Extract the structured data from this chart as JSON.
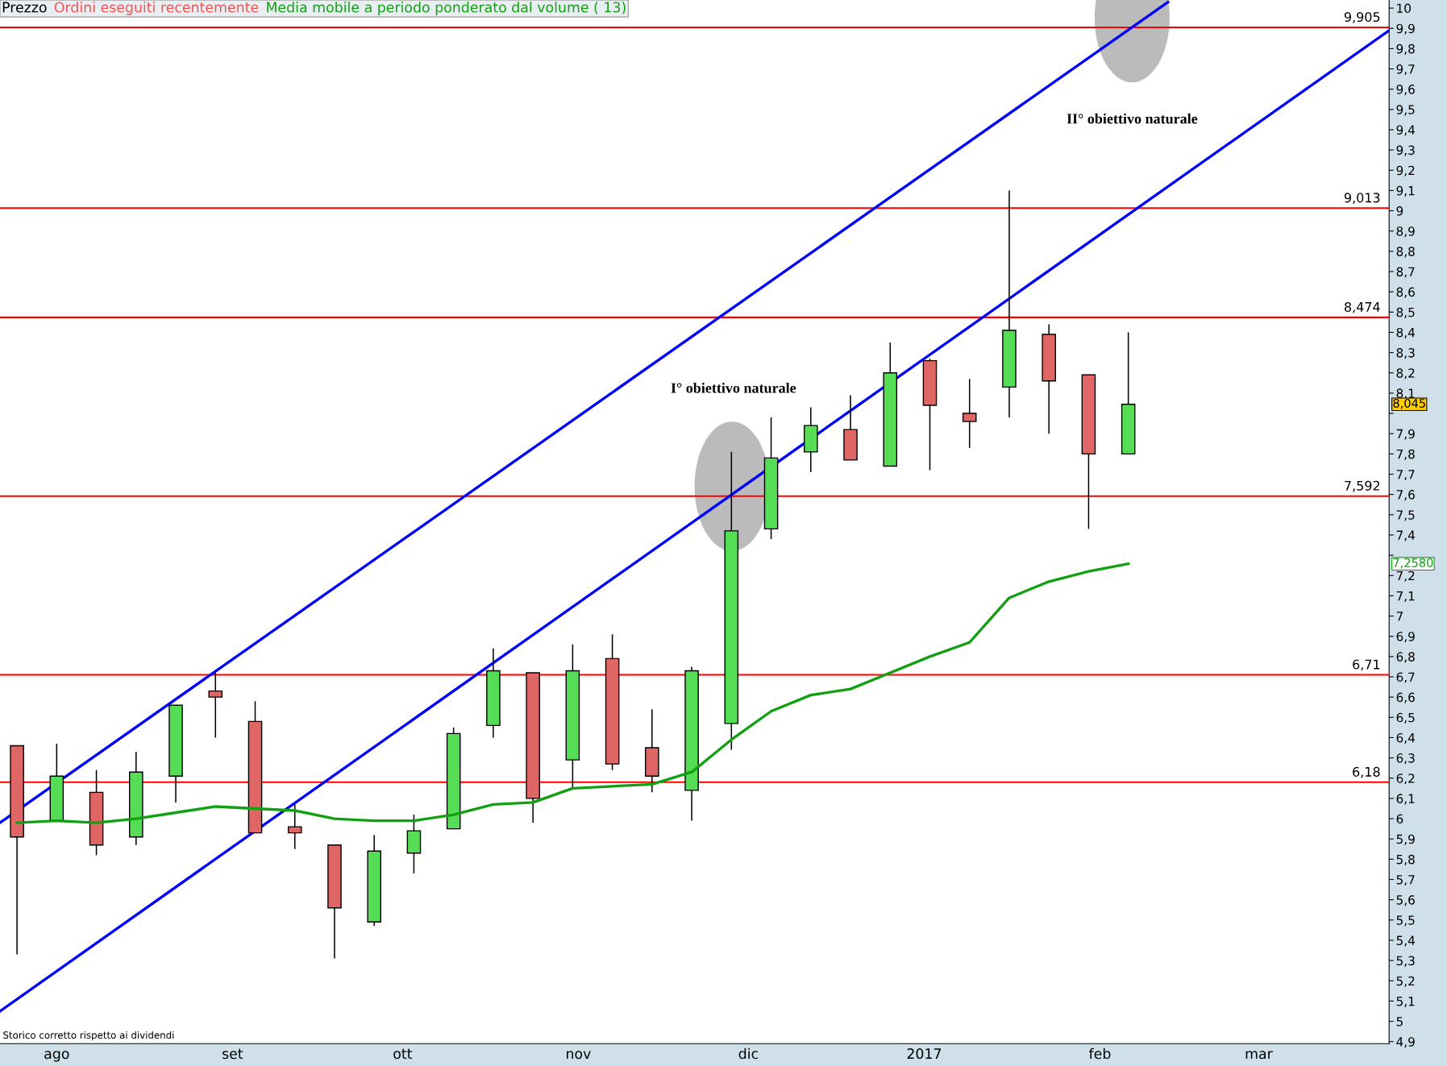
{
  "chart_data": {
    "type": "candlestick",
    "x": [
      "2016-07-25",
      "2016-08-01",
      "2016-08-08",
      "2016-08-15",
      "2016-08-22",
      "2016-08-29",
      "2016-09-05",
      "2016-09-12",
      "2016-09-19",
      "2016-09-26",
      "2016-10-03",
      "2016-10-10",
      "2016-10-17",
      "2016-10-24",
      "2016-10-31",
      "2016-11-07",
      "2016-11-14",
      "2016-11-21",
      "2016-11-28",
      "2016-12-05",
      "2016-12-12",
      "2016-12-19",
      "2016-12-26",
      "2017-01-02",
      "2017-01-09",
      "2017-01-16",
      "2017-01-23",
      "2017-01-30",
      "2017-02-06"
    ],
    "series": [
      {
        "name": "Prezzo",
        "type": "candlestick",
        "color": "#000000",
        "ohlc": [
          [
            6.36,
            6.36,
            5.33,
            5.91
          ],
          [
            5.99,
            6.37,
            5.99,
            6.21
          ],
          [
            6.13,
            6.24,
            5.82,
            5.87
          ],
          [
            5.91,
            6.33,
            5.87,
            6.23
          ],
          [
            6.21,
            6.56,
            6.08,
            6.56
          ],
          [
            6.63,
            6.72,
            6.4,
            6.6
          ],
          [
            6.48,
            6.58,
            5.93,
            5.93
          ],
          [
            5.96,
            6.07,
            5.85,
            5.93
          ],
          [
            5.87,
            5.87,
            5.31,
            5.56
          ],
          [
            5.49,
            5.92,
            5.47,
            5.84
          ],
          [
            5.83,
            6.02,
            5.73,
            5.94
          ],
          [
            5.95,
            6.45,
            5.95,
            6.42
          ],
          [
            6.46,
            6.84,
            6.4,
            6.73
          ],
          [
            6.72,
            6.72,
            5.98,
            6.1
          ],
          [
            6.29,
            6.86,
            6.15,
            6.73
          ],
          [
            6.79,
            6.91,
            6.24,
            6.27
          ],
          [
            6.35,
            6.54,
            6.13,
            6.21
          ],
          [
            6.14,
            6.75,
            5.99,
            6.73
          ],
          [
            6.47,
            7.81,
            6.34,
            7.42
          ],
          [
            7.43,
            7.98,
            7.38,
            7.78
          ],
          [
            7.81,
            8.03,
            7.71,
            7.94
          ],
          [
            7.92,
            8.09,
            7.77,
            7.77
          ],
          [
            7.74,
            8.35,
            7.74,
            8.2
          ],
          [
            8.26,
            8.27,
            7.72,
            8.04
          ],
          [
            8.0,
            8.17,
            7.83,
            7.96
          ],
          [
            8.13,
            9.1,
            7.98,
            8.41
          ],
          [
            8.39,
            8.44,
            7.9,
            8.16
          ],
          [
            8.19,
            8.19,
            7.43,
            7.8
          ],
          [
            7.8,
            8.4,
            7.8,
            8.045
          ]
        ],
        "colors": [
          "#e06666",
          "#55dd55",
          "#e06666",
          "#55dd55",
          "#55dd55",
          "#e06666",
          "#e06666",
          "#e06666",
          "#e06666",
          "#55dd55",
          "#55dd55",
          "#55dd55",
          "#55dd55",
          "#e06666",
          "#55dd55",
          "#e06666",
          "#e06666",
          "#55dd55",
          "#55dd55",
          "#55dd55",
          "#55dd55",
          "#e06666",
          "#55dd55",
          "#e06666",
          "#e06666",
          "#55dd55",
          "#e06666",
          "#e06666",
          "#55dd55"
        ]
      },
      {
        "name": "Media mobile a periodo ponderato dal volume ( 13)",
        "type": "line",
        "color": "#11a011",
        "values": [
          5.98,
          5.99,
          5.98,
          6.0,
          6.03,
          6.06,
          6.05,
          6.04,
          6.0,
          5.99,
          5.99,
          6.02,
          6.07,
          6.08,
          6.15,
          6.16,
          6.17,
          6.23,
          6.39,
          6.53,
          6.61,
          6.64,
          6.72,
          6.8,
          6.87,
          7.09,
          7.17,
          7.22,
          7.258
        ]
      },
      {
        "type": "line",
        "color": "#0000ff",
        "x": [
          "2016-07-22",
          "2017-02-13"
        ],
        "values": [
          5.98,
          10.03
        ]
      },
      {
        "type": "line",
        "color": "#0000ff",
        "x": [
          "2016-07-22",
          "2017-03-24"
        ],
        "values": [
          5.05,
          9.89
        ]
      }
    ],
    "ref_lines": [
      {
        "axis": "y",
        "value": 9.905,
        "label": "9,905",
        "color": "#ff0000"
      },
      {
        "axis": "y",
        "value": 9.013,
        "label": "9,013",
        "color": "#ff0000"
      },
      {
        "axis": "y",
        "value": 8.474,
        "label": "8,474",
        "color": "#ff0000"
      },
      {
        "axis": "y",
        "value": 7.592,
        "label": "7,592",
        "color": "#ff0000"
      },
      {
        "axis": "y",
        "value": 6.71,
        "label": "6,71",
        "color": "#ff0000"
      },
      {
        "axis": "y",
        "value": 6.18,
        "label": "6,18",
        "color": "#ff0000"
      }
    ],
    "annotations": [
      "I° obiettivo naturale",
      "II° obiettivo naturale",
      "Ordini eseguiti recentemente",
      "Storico corretto rispetto ai dividendi",
      "8,045",
      "7,2580"
    ],
    "xlim": [
      "2016-07-22",
      "2017-03-24"
    ],
    "xticks": [
      {
        "value": "2016-08-01",
        "label": "ago"
      },
      {
        "value": "2016-09-01",
        "label": "set"
      },
      {
        "value": "2016-10-01",
        "label": "ott"
      },
      {
        "value": "2016-11-01",
        "label": "nov"
      },
      {
        "value": "2016-12-01",
        "label": "dic"
      },
      {
        "value": "2017-01-01",
        "label": "2017"
      },
      {
        "value": "2017-02-01",
        "label": "feb"
      },
      {
        "value": "2017-03-01",
        "label": "mar"
      }
    ],
    "ylim": [
      4.89,
      10.04
    ],
    "yticks": [
      {
        "value": 4.9,
        "label": "4,9"
      },
      5,
      {
        "value": 5.1,
        "label": "5,1"
      },
      {
        "value": 5.2,
        "label": "5,2"
      },
      {
        "value": 5.3,
        "label": "5,3"
      },
      {
        "value": 5.4,
        "label": "5,4"
      },
      {
        "value": 5.5,
        "label": "5,5"
      },
      {
        "value": 5.6,
        "label": "5,6"
      },
      {
        "value": 5.7,
        "label": "5,7"
      },
      {
        "value": 5.8,
        "label": "5,8"
      },
      {
        "value": 5.9,
        "label": "5,9"
      },
      6,
      {
        "value": 6.1,
        "label": "6,1"
      },
      {
        "value": 6.2,
        "label": "6,2"
      },
      {
        "value": 6.3,
        "label": "6,3"
      },
      {
        "value": 6.4,
        "label": "6,4"
      },
      {
        "value": 6.5,
        "label": "6,5"
      },
      {
        "value": 6.6,
        "label": "6,6"
      },
      {
        "value": 6.7,
        "label": "6,7"
      },
      {
        "value": 6.8,
        "label": "6,8"
      },
      {
        "value": 6.9,
        "label": "6,9"
      },
      7,
      {
        "value": 7.1,
        "label": "7,1"
      },
      {
        "value": 7.2,
        "label": "7,2"
      },
      {
        "value": 7.3,
        "label": null
      },
      {
        "value": 7.4,
        "label": "7,4"
      },
      {
        "value": 7.5,
        "label": "7,5"
      },
      {
        "value": 7.6,
        "label": "7,6"
      },
      {
        "value": 7.7,
        "label": "7,7"
      },
      {
        "value": 7.8,
        "label": "7,8"
      },
      {
        "value": 7.9,
        "label": "7,9"
      },
      {
        "value": 8,
        "label": null
      },
      {
        "value": 8.1,
        "label": "8,1"
      },
      {
        "value": 8.2,
        "label": "8,2"
      },
      {
        "value": 8.3,
        "label": "8,3"
      },
      {
        "value": 8.4,
        "label": "8,4"
      },
      {
        "value": 8.5,
        "label": "8,5"
      },
      {
        "value": 8.6,
        "label": "8,6"
      },
      {
        "value": 8.7,
        "label": "8,7"
      },
      {
        "value": 8.8,
        "label": "8,8"
      },
      {
        "value": 8.9,
        "label": "8,9"
      },
      9,
      {
        "value": 9.1,
        "label": "9,1"
      },
      {
        "value": 9.2,
        "label": "9,2"
      },
      {
        "value": 9.3,
        "label": "9,3"
      },
      {
        "value": 9.4,
        "label": "9,4"
      },
      {
        "value": 9.5,
        "label": "9,5"
      },
      {
        "value": 9.6,
        "label": "9,6"
      },
      {
        "value": 9.7,
        "label": "9,7"
      },
      {
        "value": 9.8,
        "label": "9,8"
      },
      {
        "value": 9.9,
        "label": "9,9"
      },
      10
    ],
    "legend": "top left"
  }
}
